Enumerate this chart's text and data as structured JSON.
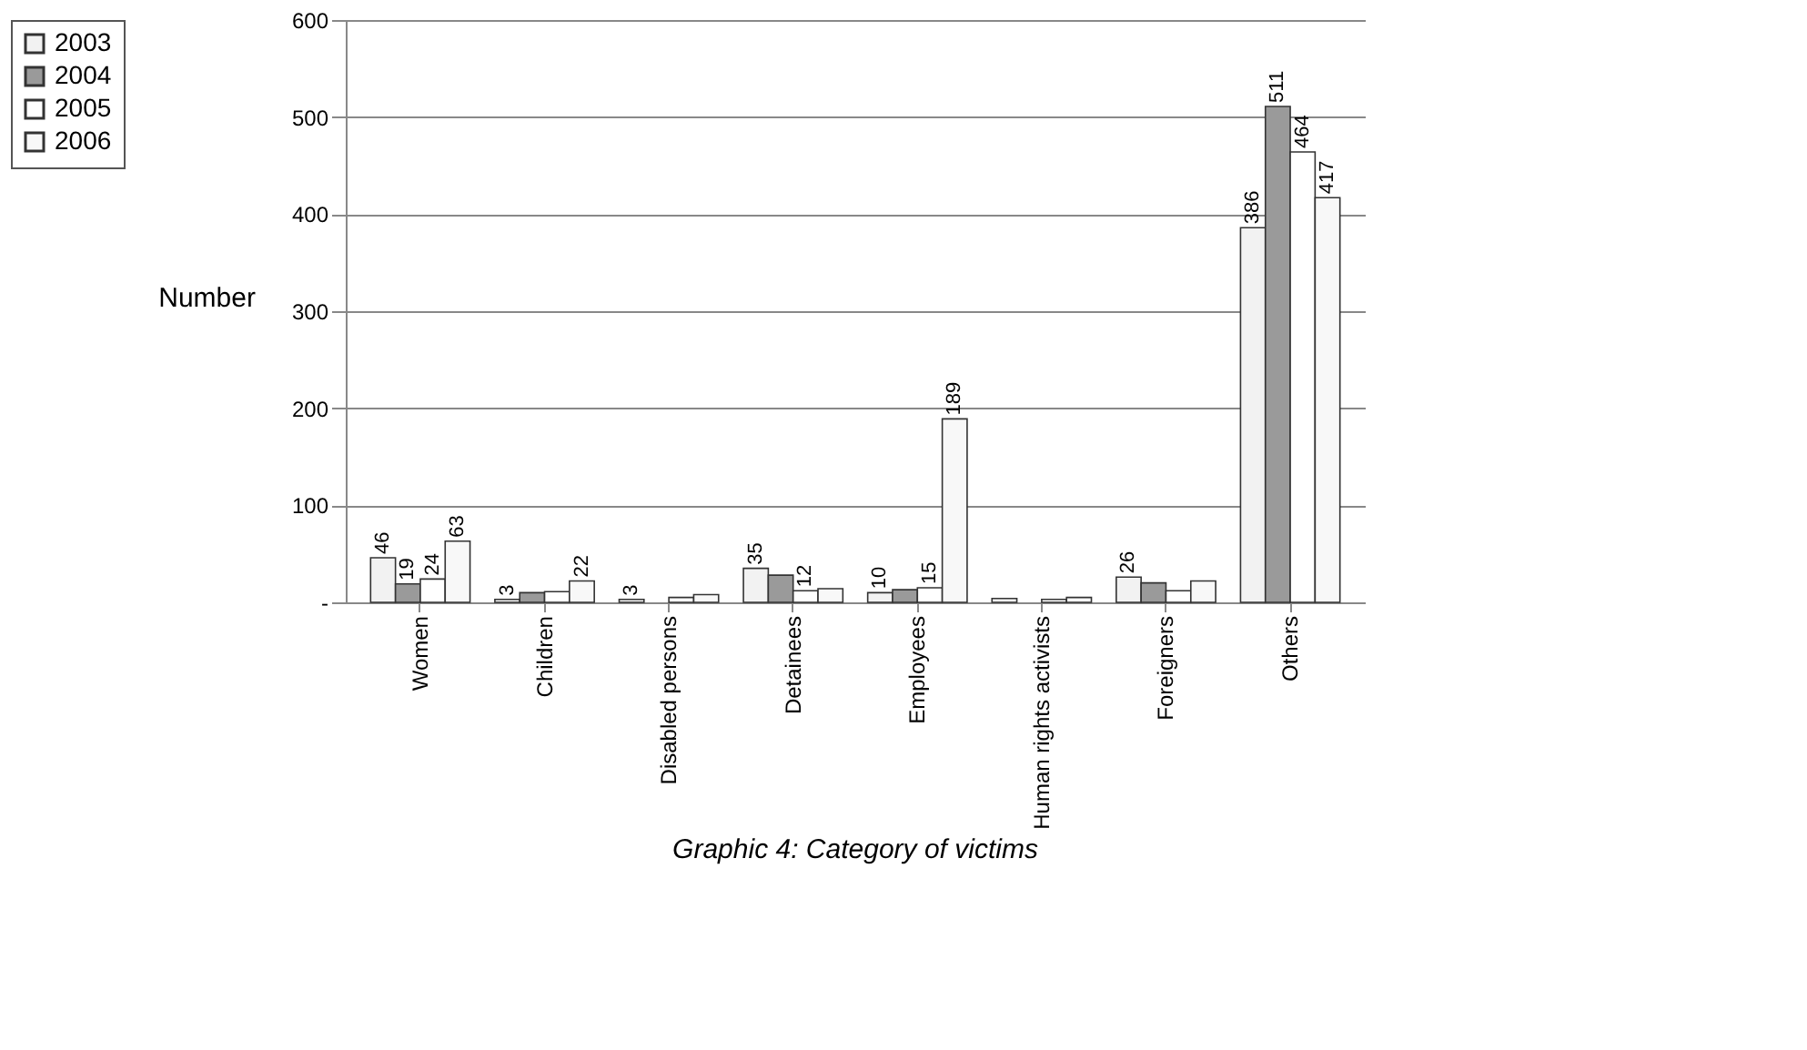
{
  "chart_data": {
    "type": "bar",
    "title": "Graphic 4: Category of victims",
    "ylabel": "Number",
    "categories": [
      "Women",
      "Children",
      "Disabled persons",
      "Detainees",
      "Employees",
      "Human rights activists",
      "Foreigners",
      "Others"
    ],
    "series": [
      {
        "name": "2003",
        "color": "#f2f2f2",
        "values": [
          46,
          3,
          3,
          35,
          10,
          4,
          26,
          386
        ],
        "value_labels": [
          "46",
          "3",
          "3",
          "35",
          "10",
          null,
          "26",
          "386"
        ]
      },
      {
        "name": "2004",
        "color": "#9a9a9a",
        "values": [
          19,
          10,
          null,
          28,
          13,
          null,
          20,
          511
        ],
        "value_labels": [
          "19",
          null,
          null,
          null,
          null,
          null,
          null,
          "511"
        ]
      },
      {
        "name": "2005",
        "color": "#ffffff",
        "values": [
          24,
          11,
          5,
          12,
          15,
          3,
          12,
          464
        ],
        "value_labels": [
          "24",
          null,
          null,
          "12",
          "15",
          null,
          null,
          "464"
        ]
      },
      {
        "name": "2006",
        "color": "#f8f8f8",
        "values": [
          63,
          22,
          8,
          14,
          189,
          5,
          22,
          417
        ],
        "value_labels": [
          "63",
          "22",
          null,
          null,
          "189",
          null,
          null,
          "417"
        ]
      }
    ],
    "ylim": [
      0,
      600
    ],
    "yticks": [
      {
        "value": 0,
        "label": "-"
      },
      100,
      200,
      300,
      400,
      500,
      600
    ],
    "grid": "y",
    "legend": "left"
  }
}
